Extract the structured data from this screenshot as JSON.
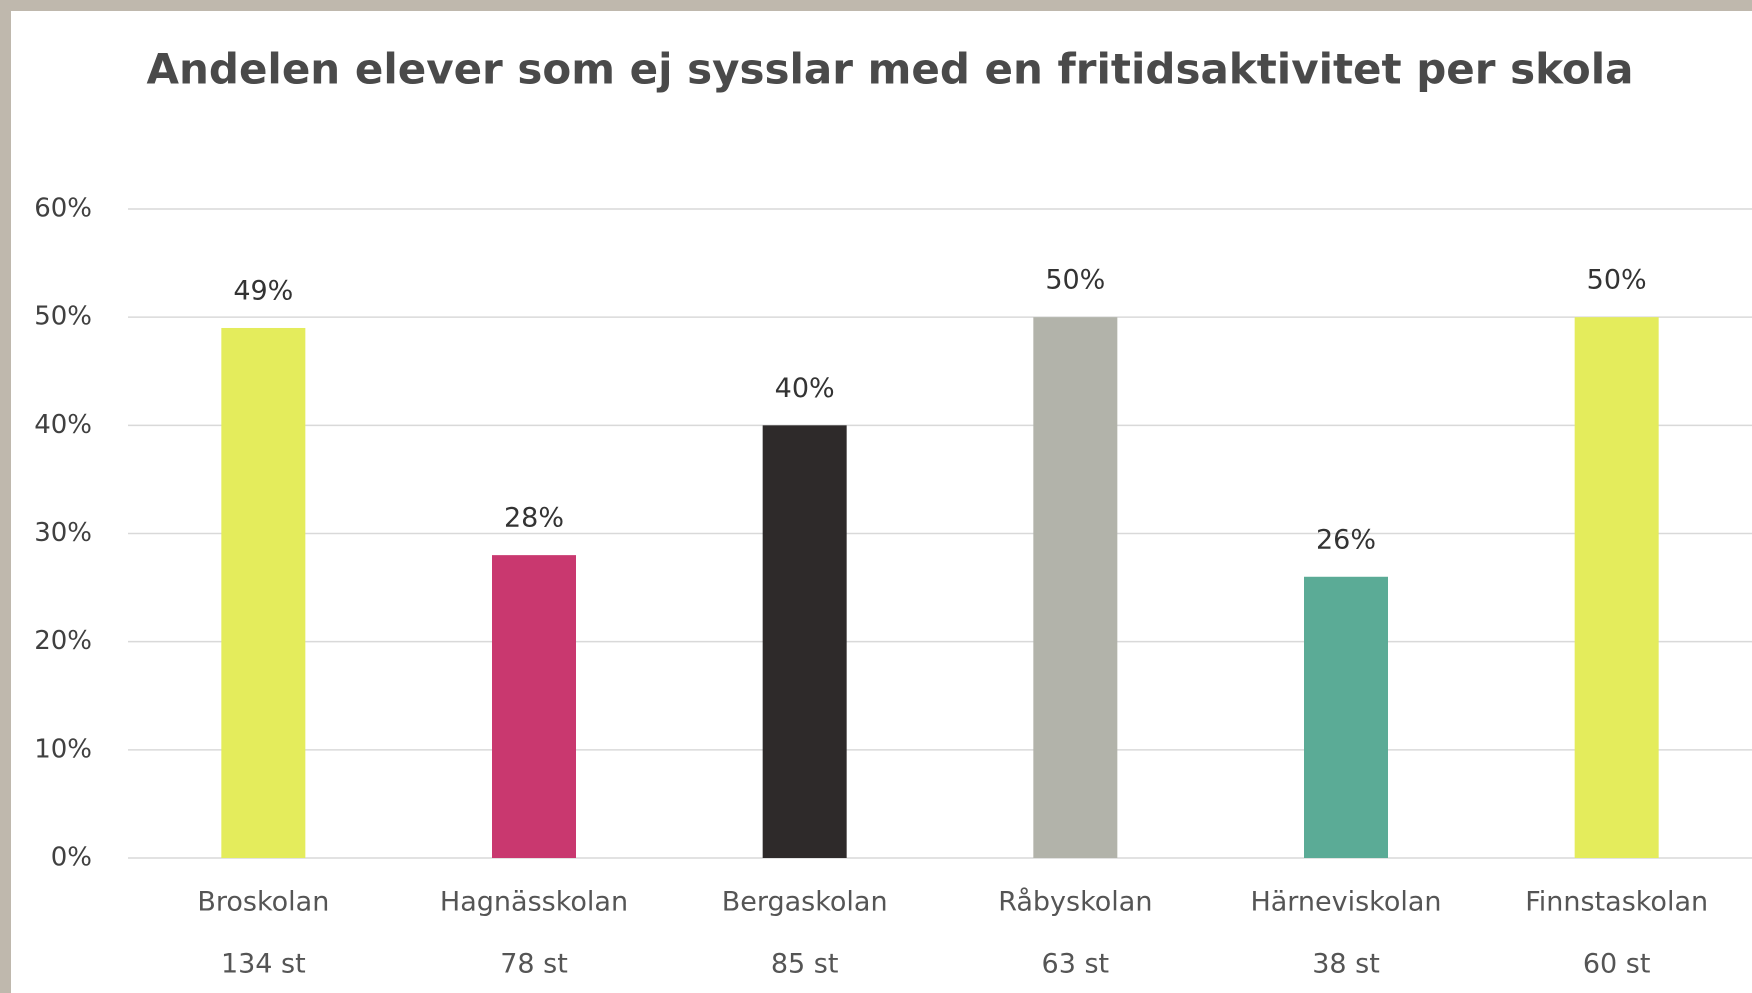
{
  "chart_data": {
    "type": "bar",
    "title": "Andelen elever som ej sysslar med en fritidsaktivitet per skola",
    "categories": [
      "Broskolan",
      "Hagnässkolan",
      "Bergaskolan",
      "Råbyskolan",
      "Härneviskolan",
      "Finnstaskolan"
    ],
    "category_sublabels": [
      "134 st",
      "78 st",
      "85 st",
      "63 st",
      "38 st",
      "60 st"
    ],
    "values": [
      49,
      28,
      40,
      50,
      26,
      50
    ],
    "value_labels": [
      "49%",
      "28%",
      "40%",
      "50%",
      "26%",
      "50%"
    ],
    "colors": [
      "#e4ec5c",
      "#c9386f",
      "#2e2a2a",
      "#b2b3aa",
      "#5bab96",
      "#e4ec5c"
    ],
    "ylim": [
      0,
      60
    ],
    "yticks": [
      {
        "value": 0,
        "label": "0%"
      },
      {
        "value": 10,
        "label": "10%"
      },
      {
        "value": 20,
        "label": "20%"
      },
      {
        "value": 30,
        "label": "30%"
      },
      {
        "value": 40,
        "label": "40%"
      },
      {
        "value": 50,
        "label": "50%"
      },
      {
        "value": 60,
        "label": "60%"
      }
    ],
    "grid": true
  }
}
